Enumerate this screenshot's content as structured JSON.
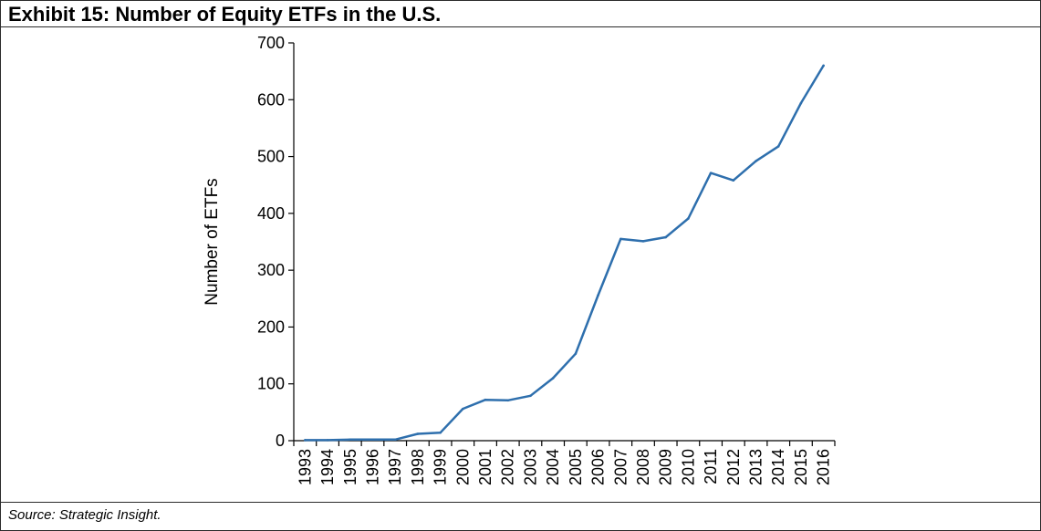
{
  "header": {
    "title": "Exhibit 15: Number of Equity ETFs in the U.S."
  },
  "footer": {
    "source": "Source: Strategic Insight."
  },
  "chart_data": {
    "type": "line",
    "title": "",
    "xlabel": "",
    "ylabel": "Number of ETFs",
    "categories": [
      "1993",
      "1994",
      "1995",
      "1996",
      "1997",
      "1998",
      "1999",
      "2000",
      "2001",
      "2002",
      "2003",
      "2004",
      "2005",
      "2006",
      "2007",
      "2008",
      "2009",
      "2010",
      "2011",
      "2012",
      "2013",
      "2014",
      "2015",
      "2016"
    ],
    "series": [
      {
        "values": [
          1,
          1,
          2,
          2,
          2,
          12,
          14,
          56,
          72,
          71,
          79,
          110,
          153,
          256,
          355,
          351,
          358,
          391,
          471,
          458,
          492,
          518,
          594,
          660
        ],
        "color": "#2e6fad"
      }
    ],
    "ylim": [
      0,
      700
    ],
    "yticks": [
      0,
      100,
      200,
      300,
      400,
      500,
      600,
      700
    ],
    "grid": false,
    "legend": "none"
  }
}
